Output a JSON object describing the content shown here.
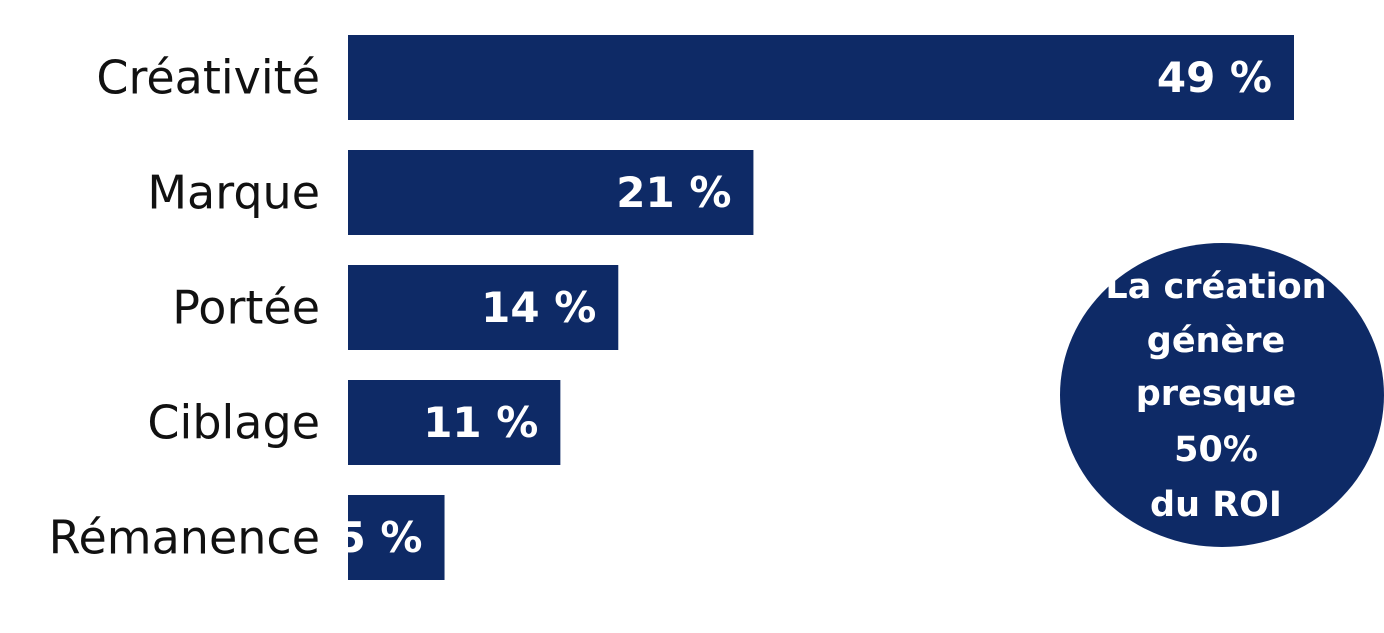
{
  "chart_data": {
    "type": "bar",
    "orientation": "horizontal",
    "categories": [
      "Créativité",
      "Marque",
      "Portée",
      "Ciblage",
      "Rémanence"
    ],
    "values": [
      49,
      21,
      14,
      11,
      5
    ],
    "value_labels": [
      "49 %",
      "21 %",
      "14 %",
      "11 %",
      "5 %"
    ],
    "unit": "%",
    "xlim": [
      0,
      49
    ],
    "grid": false,
    "legend": "none",
    "bar_color": "#0e2a66"
  },
  "callout": {
    "lines": [
      "La création",
      "génère",
      "presque",
      "50%",
      "du ROI"
    ],
    "color": "#0e2a66"
  }
}
